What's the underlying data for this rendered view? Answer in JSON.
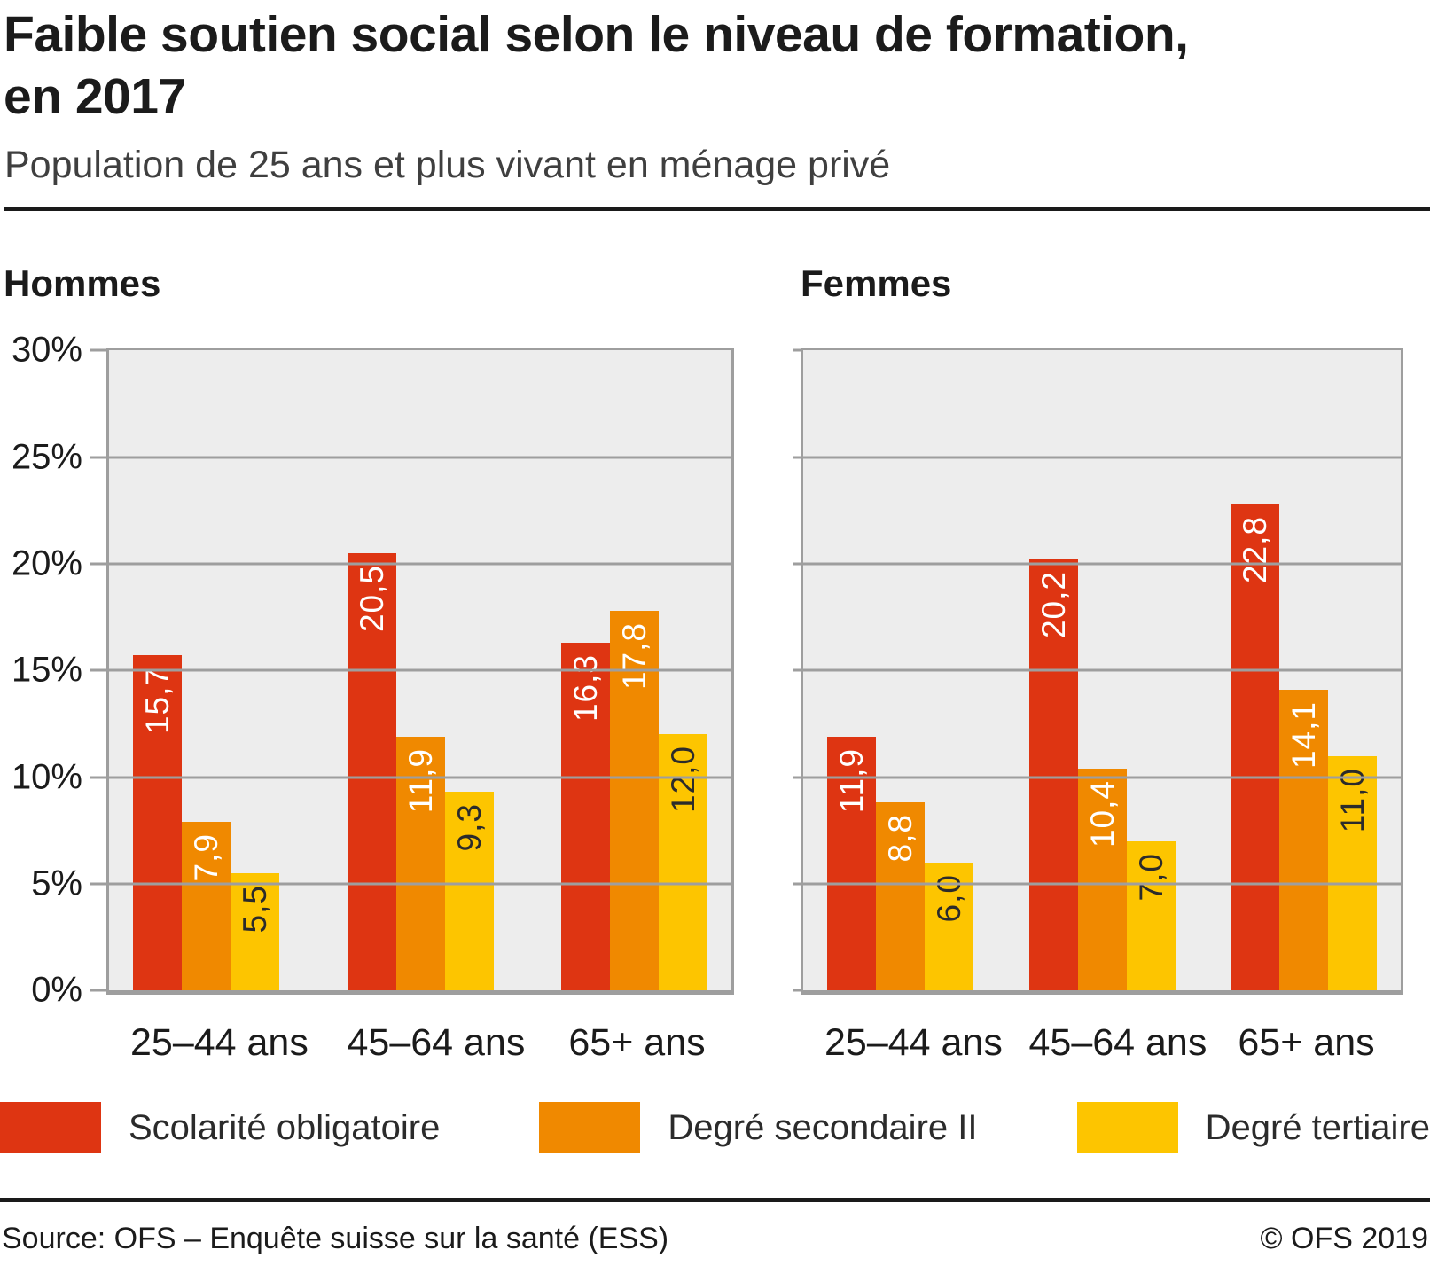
{
  "header": {
    "title": "Faible soutien social selon le niveau de formation,\nen 2017",
    "subtitle": "Population de 25 ans et plus vivant en ménage privé"
  },
  "colors": {
    "series": [
      "#de3512",
      "#f08900",
      "#fdc500"
    ],
    "series_label": [
      "#ffffff",
      "#ffffff",
      "#2b2b2b"
    ],
    "plot_background": "#ededed",
    "grid": "#9e9e9e",
    "text": "#1b1b1b",
    "rule": "#1a1a1a"
  },
  "legend": {
    "items": [
      {
        "label": "Scolarité obligatoire"
      },
      {
        "label": "Degré secondaire II"
      },
      {
        "label": "Degré tertiaire"
      }
    ]
  },
  "chart_data": {
    "type": "bar",
    "ylim": [
      0,
      30
    ],
    "yticks": [
      "30%",
      "25%",
      "20%",
      "15%",
      "10%",
      "5%",
      "0%"
    ],
    "grid": true,
    "legend_position": "bottom",
    "value_label_format": "one-decimal-comma",
    "panels": [
      {
        "title": "Hommes",
        "categories": [
          "25–44 ans",
          "45–64 ans",
          "65+ ans"
        ],
        "series": [
          {
            "name": "Scolarité obligatoire",
            "values": [
              15.7,
              20.5,
              16.3
            ]
          },
          {
            "name": "Degré secondaire II",
            "values": [
              7.9,
              11.9,
              17.8
            ]
          },
          {
            "name": "Degré tertiaire",
            "values": [
              5.5,
              9.3,
              12.0
            ]
          }
        ]
      },
      {
        "title": "Femmes",
        "categories": [
          "25–44 ans",
          "45–64 ans",
          "65+ ans"
        ],
        "series": [
          {
            "name": "Scolarité obligatoire",
            "values": [
              11.9,
              20.2,
              22.8
            ]
          },
          {
            "name": "Degré secondaire II",
            "values": [
              8.8,
              10.4,
              14.1
            ]
          },
          {
            "name": "Degré tertiaire",
            "values": [
              6.0,
              7.0,
              11.0
            ]
          }
        ]
      }
    ]
  },
  "footer": {
    "source": "Source: OFS – Enquête suisse sur la santé (ESS)",
    "copyright": "© OFS 2019"
  }
}
